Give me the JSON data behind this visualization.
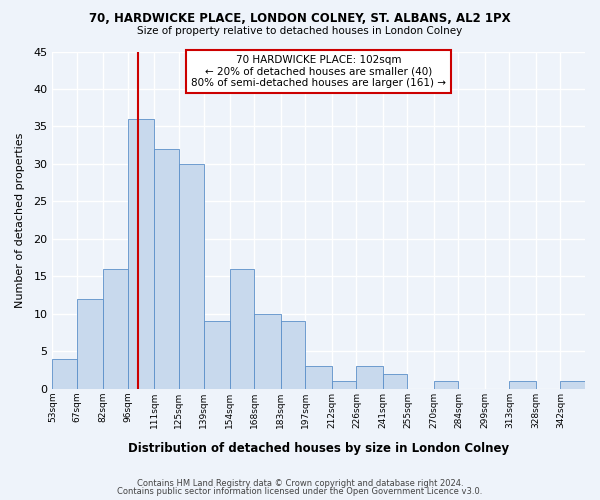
{
  "title1": "70, HARDWICKE PLACE, LONDON COLNEY, ST. ALBANS, AL2 1PX",
  "title2": "Size of property relative to detached houses in London Colney",
  "xlabel": "Distribution of detached houses by size in London Colney",
  "ylabel": "Number of detached properties",
  "bins": [
    53,
    67,
    82,
    96,
    111,
    125,
    139,
    154,
    168,
    183,
    197,
    212,
    226,
    241,
    255,
    270,
    284,
    299,
    313,
    328,
    342
  ],
  "counts": [
    4,
    12,
    16,
    36,
    32,
    30,
    9,
    16,
    10,
    9,
    3,
    1,
    3,
    2,
    0,
    1,
    0,
    0,
    1,
    0,
    1
  ],
  "bar_color": "#c8d9ed",
  "bar_edge_color": "#5b8fc9",
  "tick_labels": [
    "53sqm",
    "67sqm",
    "82sqm",
    "96sqm",
    "111sqm",
    "125sqm",
    "139sqm",
    "154sqm",
    "168sqm",
    "183sqm",
    "197sqm",
    "212sqm",
    "226sqm",
    "241sqm",
    "255sqm",
    "270sqm",
    "284sqm",
    "299sqm",
    "313sqm",
    "328sqm",
    "342sqm"
  ],
  "vline_x": 102,
  "vline_color": "#cc0000",
  "annotation_line1": "70 HARDWICKE PLACE: 102sqm",
  "annotation_line2": "← 20% of detached houses are smaller (40)",
  "annotation_line3": "80% of semi-detached houses are larger (161) →",
  "ylim": [
    0,
    45
  ],
  "yticks": [
    0,
    5,
    10,
    15,
    20,
    25,
    30,
    35,
    40,
    45
  ],
  "footer1": "Contains HM Land Registry data © Crown copyright and database right 2024.",
  "footer2": "Contains public sector information licensed under the Open Government Licence v3.0.",
  "bg_color": "#eef3fa",
  "grid_color": "#ffffff",
  "annotation_box_color": "#cc0000",
  "annotation_facecolor": "#ffffff"
}
